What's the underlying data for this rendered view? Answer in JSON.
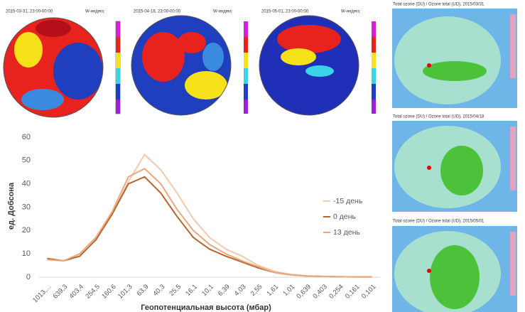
{
  "chart_data": {
    "type": "line",
    "y_label": "ед. Добсона",
    "x_label": "Геопотенциальная высота (мбар)",
    "categories": [
      "1013,...",
      "639,3",
      "403,4",
      "254,5",
      "160,6",
      "101,3",
      "63,9",
      "40,3",
      "25,5",
      "16,1",
      "10,1",
      "6,39",
      "4,03",
      "2,55",
      "1,61",
      "1,01",
      "0,639",
      "0,403",
      "0,254",
      "0,161",
      "0,101"
    ],
    "series": [
      {
        "name": "-15 день",
        "color": "#f5c9ad",
        "values": [
          8,
          7,
          10,
          17,
          27,
          41,
          52.5,
          46,
          36,
          25,
          17,
          12,
          9,
          5,
          2.5,
          1.2,
          0.6,
          0.3,
          0.2,
          0.1,
          0.1
        ]
      },
      {
        "name": "0 день",
        "color": "#b5652e",
        "values": [
          8,
          7,
          9,
          16,
          27,
          40,
          43,
          36,
          26,
          17,
          12,
          9,
          6.5,
          4,
          2,
          1,
          0.5,
          0.3,
          0.2,
          0.1,
          0.1
        ]
      },
      {
        "name": "13 день",
        "color": "#eba87e",
        "values": [
          7.5,
          7,
          10,
          17,
          28,
          43,
          46.5,
          40,
          29,
          20,
          14,
          10,
          7,
          4.5,
          2,
          1,
          0.5,
          0.3,
          0.2,
          0.1,
          0.1
        ]
      }
    ],
    "ylim": [
      0,
      60
    ],
    "yticks": [
      0,
      10,
      20,
      30,
      40,
      50,
      60
    ],
    "grid": false,
    "legend": "right"
  },
  "w_maps": [
    {
      "date": "2015-03-31, 23:00-00:00",
      "label": "W-индекс"
    },
    {
      "date": "2015-04-18, 23:00-00:00",
      "label": "W-индекс"
    },
    {
      "date": "2015-05-01, 23:00-00:00",
      "label": "W-индекс"
    }
  ],
  "ozone_maps": [
    {
      "title": "Total ozone (DU) / Ozone total (UD), 2015/03/31"
    },
    {
      "title": "Total ozone (DU) / Ozone total (UD), 2015/04/18"
    },
    {
      "title": "Total ozone (DU) / Ozone total (UD), 2015/05/01"
    }
  ]
}
